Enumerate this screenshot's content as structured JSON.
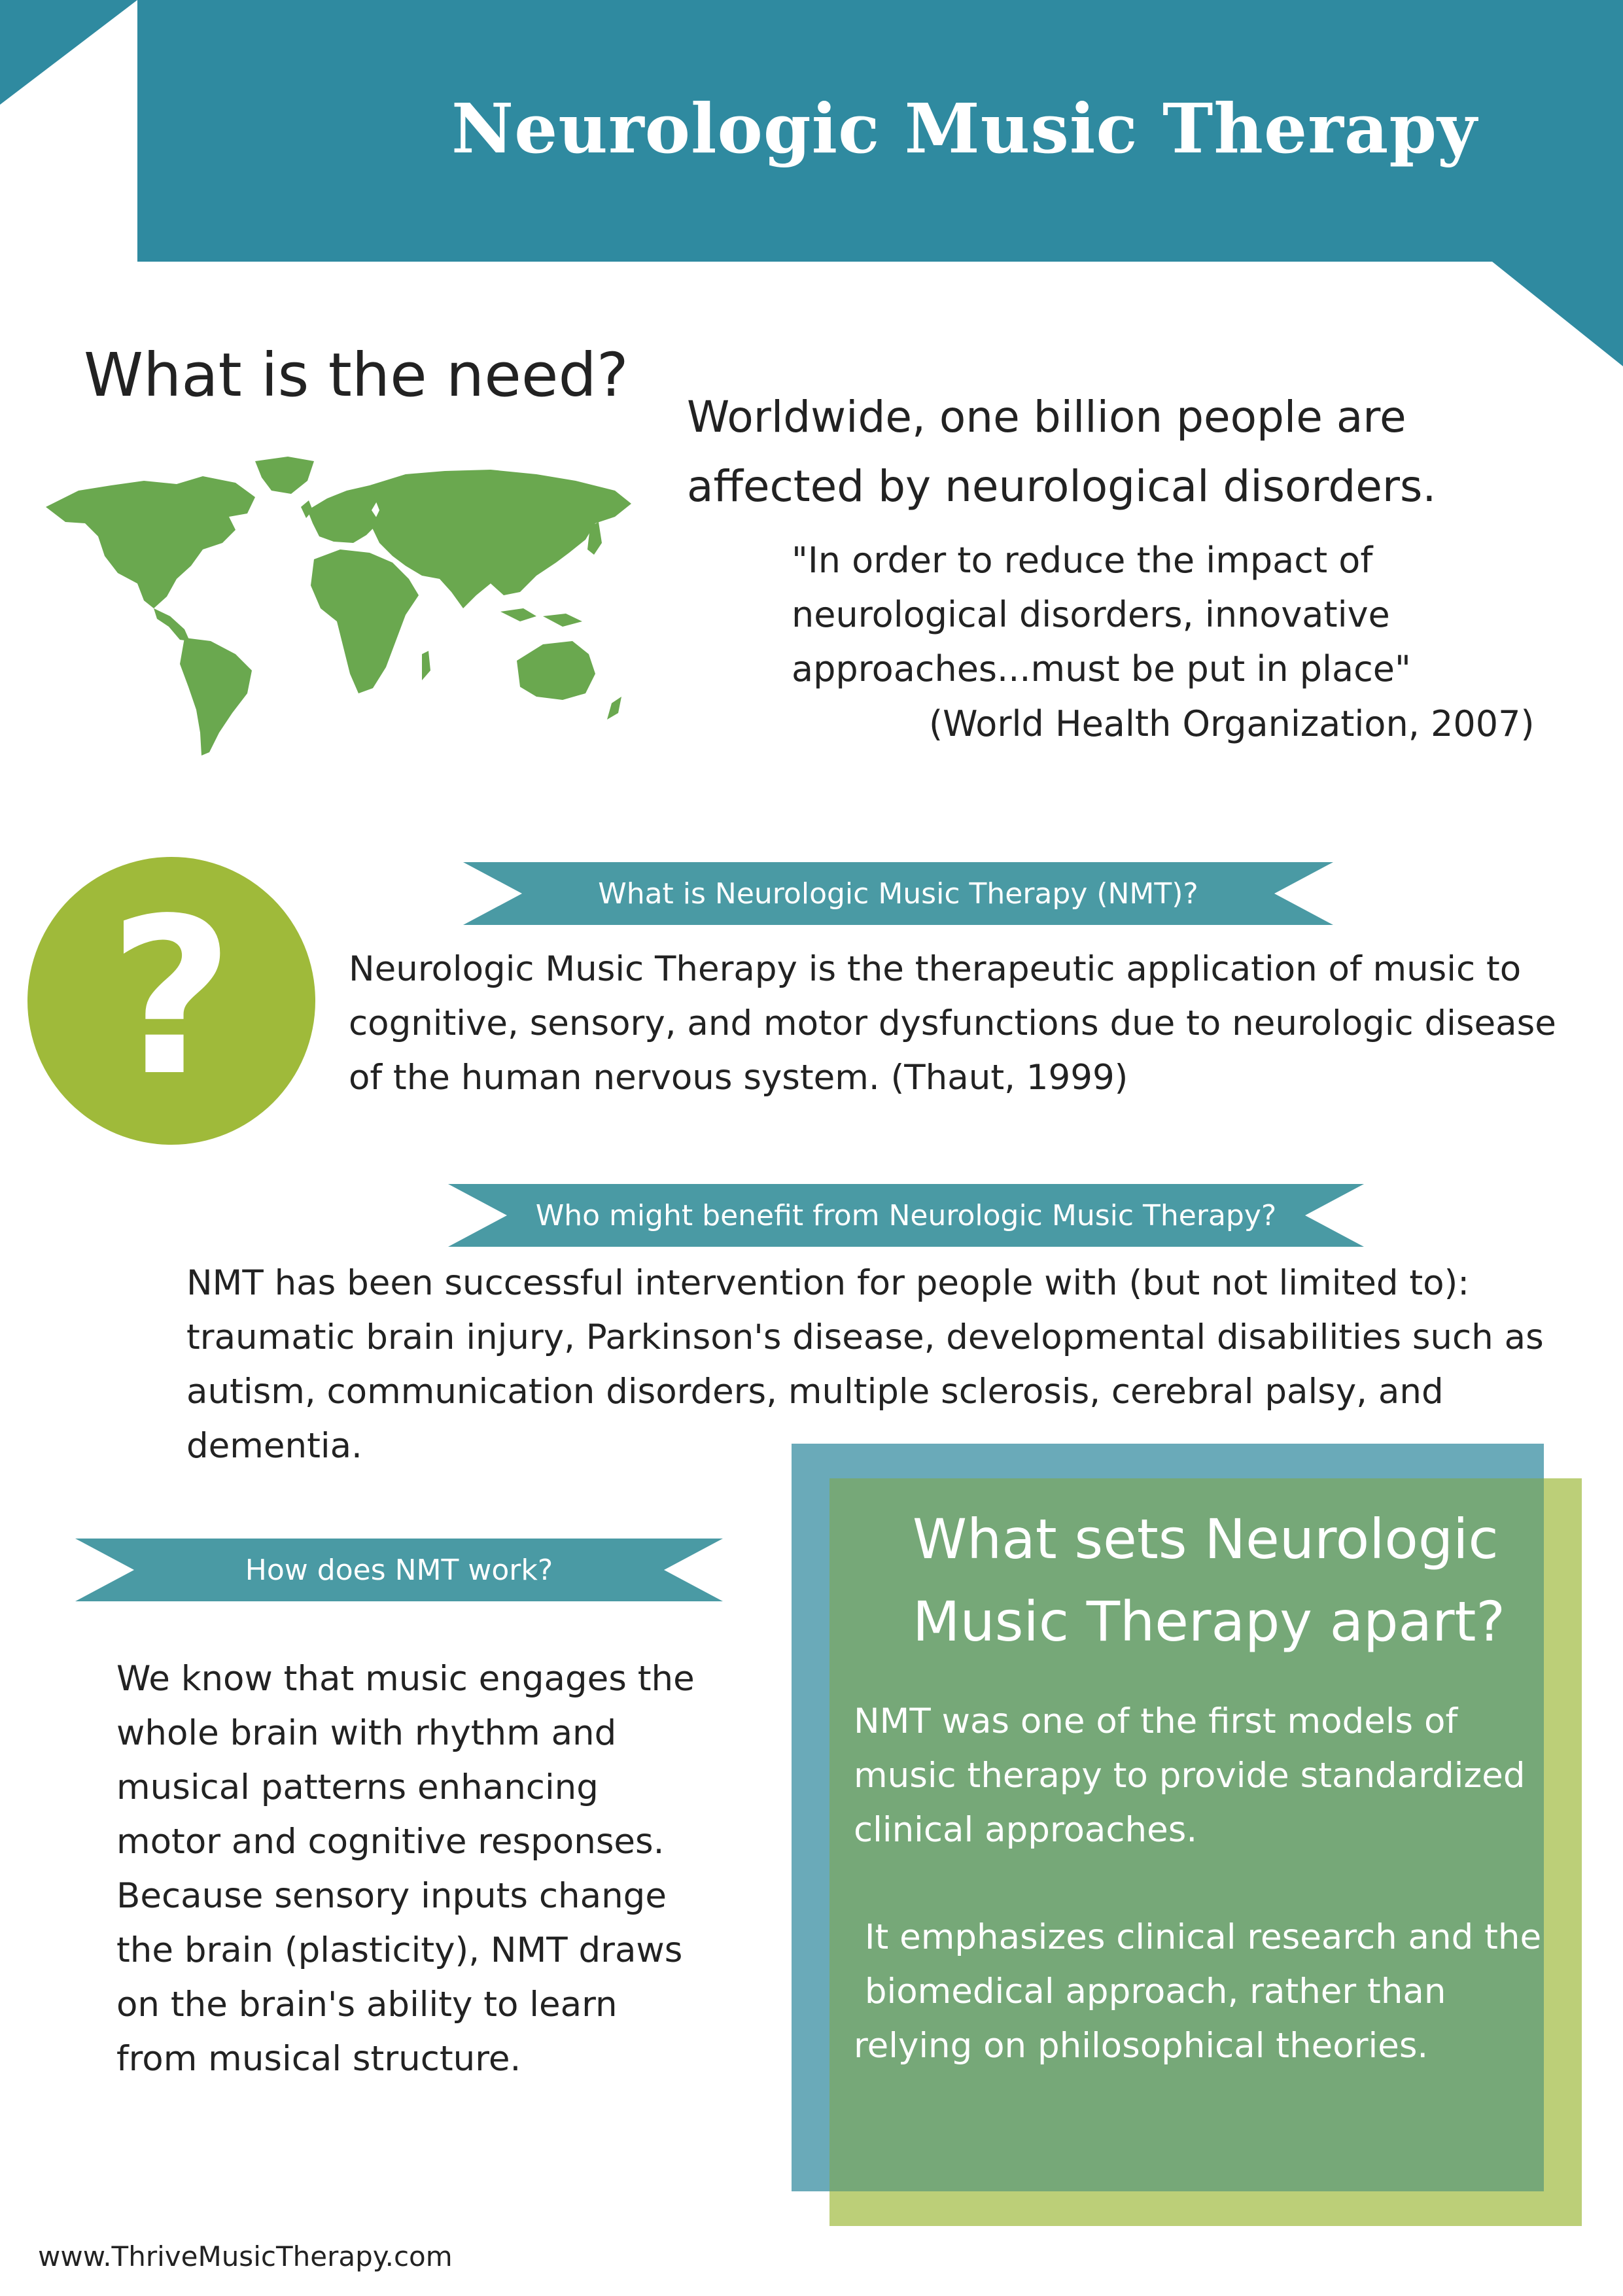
{
  "header": {
    "title": "Neurologic Music Therapy"
  },
  "need": {
    "heading": "What is the need?",
    "statement": "Worldwide, one billion people are affected by neurological disorders.",
    "quote": "\"In order to reduce the impact of neurological disorders, innovative approaches...must be put in place\"",
    "citation": "(World Health Organization, 2007)",
    "map_icon": "world-map-icon"
  },
  "nmt": {
    "ribbon": "What is Neurologic Music Therapy (NMT)?",
    "icon": "question-mark-icon",
    "question_glyph": "?",
    "definition": "Neurologic Music Therapy is the therapeutic application of music to cognitive, sensory, and motor dysfunctions due to neurologic disease of the human nervous system. (Thaut, 1999)"
  },
  "benefit": {
    "ribbon": "Who might benefit from Neurologic Music Therapy?",
    "text": "NMT has been successful intervention for people with (but not limited to): traumatic brain injury, Parkinson's disease, developmental disabilities such as autism, communication disorders, multiple sclerosis, cerebral palsy, and dementia."
  },
  "how": {
    "ribbon": "How does NMT work?",
    "text": "We know that music engages the whole brain with rhythm and musical patterns enhancing motor and cognitive responses. Because sensory inputs change the brain (plasticity), NMT draws on the brain's ability to learn from musical structure."
  },
  "apart": {
    "heading": "What sets Neurologic Music Therapy apart?",
    "p1": "NMT was one of the first models of music therapy to provide standardized clinical approaches.",
    "p2": " It emphasizes clinical research and the\n biomedical approach, rather than relying on philosophical theories."
  },
  "footer": {
    "url": "www.ThriveMusicTherapy.com"
  },
  "colors": {
    "header_teal": "#2f8aa0",
    "ribbon_teal": "#4a9aa4",
    "map_green": "#6aa84f",
    "circle_green": "#9fba3a",
    "box_blue": "#6aaab9",
    "box_olive": "#bccf78",
    "box_green": "#76a878"
  }
}
